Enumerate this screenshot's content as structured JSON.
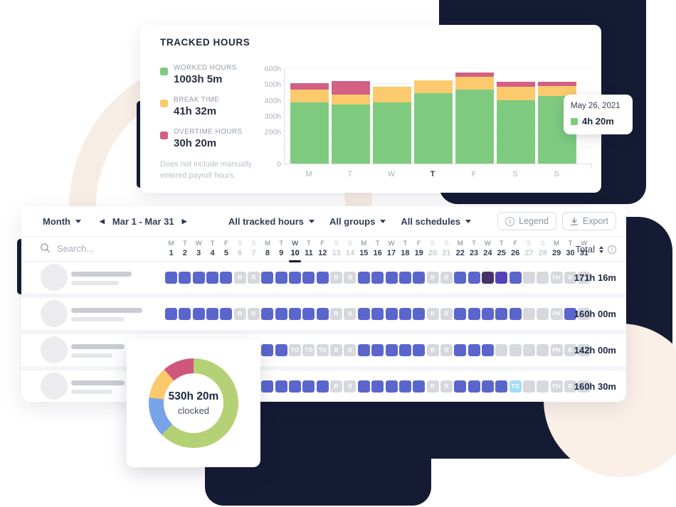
{
  "colors": {
    "worked_green": "#7ecb80",
    "break_yellow": "#fbca6d",
    "overtime_pink": "#d25f84",
    "donut_green": "#b5d176",
    "donut_blue": "#79a3e9",
    "donut_yellow": "#f9c96c",
    "donut_pink": "#cf577c",
    "cell_blue": "#5a66cc",
    "cell_dark_purple": "#463169",
    "cell_violet": "#5343b6",
    "cell_gray": "#d6d8de",
    "cell_lightblue": "#a6dcf7"
  },
  "tracked_card": {
    "title": "TRACKED HOURS",
    "legend": [
      {
        "label": "WORKED HOURS",
        "value": "1003h 5m",
        "color": "worked_green"
      },
      {
        "label": "BREAK TIME",
        "value": "41h 32m",
        "color": "break_yellow"
      },
      {
        "label": "OVERTIME HOURS",
        "value": "30h 20m",
        "color": "overtime_pink"
      }
    ],
    "footnote_line1": "Does not include manually",
    "footnote_line2": "entered payroll hours.",
    "tooltip": {
      "date": "May 26, 2021",
      "value": "4h 20m"
    }
  },
  "chart_data": [
    {
      "type": "bar",
      "stacked": true,
      "title": "Tracked hours by day",
      "categories": [
        "M",
        "T",
        "W",
        "T",
        "F",
        "S",
        "S"
      ],
      "emphasized_category_index": 3,
      "series": [
        {
          "name": "Worked hours",
          "color": "worked_green",
          "values": [
            385,
            370,
            385,
            445,
            465,
            400,
            425
          ]
        },
        {
          "name": "Break time",
          "color": "break_yellow",
          "values": [
            80,
            65,
            100,
            80,
            80,
            85,
            65
          ]
        },
        {
          "name": "Overtime hours",
          "color": "overtime_pink",
          "values": [
            40,
            85,
            0,
            0,
            30,
            30,
            25
          ]
        }
      ],
      "ylim": [
        0,
        600
      ],
      "unit": "h",
      "yticks": [
        {
          "label": "600h",
          "value": 600
        },
        {
          "label": "500h",
          "value": 500
        },
        {
          "label": "400h",
          "value": 400
        },
        {
          "label": "300h",
          "value": 300
        },
        {
          "label": "200h",
          "value": 200
        },
        {
          "label": "0",
          "value": 0
        }
      ],
      "gridlines": [
        100,
        200,
        300,
        400,
        500,
        600
      ],
      "legend_position": "left"
    },
    {
      "type": "pie",
      "donut": true,
      "center_value": "530h 20m",
      "center_label": "clocked",
      "slices": [
        {
          "color": "donut_green",
          "percent": 62.5
        },
        {
          "color": "donut_blue",
          "percent": 14.5
        },
        {
          "color": "donut_yellow",
          "percent": 11.6
        },
        {
          "color": "donut_pink",
          "percent": 11.4
        }
      ]
    }
  ],
  "toolbar": {
    "period_label": "Month",
    "date_range": "Mar 1 - Mar 31",
    "filters": [
      "All tracked hours",
      "All groups",
      "All schedules"
    ],
    "legend_button": "Legend",
    "export_button": "Export"
  },
  "table": {
    "search_placeholder": "Search...",
    "total_label": "Total",
    "days": [
      {
        "n": 1,
        "l": "M"
      },
      {
        "n": 2,
        "l": "T"
      },
      {
        "n": 3,
        "l": "W"
      },
      {
        "n": 4,
        "l": "T"
      },
      {
        "n": 5,
        "l": "F"
      },
      {
        "n": 6,
        "l": "S",
        "w": 1
      },
      {
        "n": 7,
        "l": "S",
        "w": 1
      },
      {
        "n": 8,
        "l": "M"
      },
      {
        "n": 9,
        "l": "T"
      },
      {
        "n": 10,
        "l": "W",
        "sel": 1
      },
      {
        "n": 11,
        "l": "T"
      },
      {
        "n": 12,
        "l": "F"
      },
      {
        "n": 13,
        "l": "S",
        "w": 1
      },
      {
        "n": 14,
        "l": "S",
        "w": 1
      },
      {
        "n": 15,
        "l": "M"
      },
      {
        "n": 16,
        "l": "T"
      },
      {
        "n": 17,
        "l": "W"
      },
      {
        "n": 18,
        "l": "T"
      },
      {
        "n": 19,
        "l": "F"
      },
      {
        "n": 20,
        "l": "S",
        "w": 1
      },
      {
        "n": 21,
        "l": "S",
        "w": 1
      },
      {
        "n": 22,
        "l": "M"
      },
      {
        "n": 23,
        "l": "T"
      },
      {
        "n": 24,
        "l": "W"
      },
      {
        "n": 25,
        "l": "T"
      },
      {
        "n": 26,
        "l": "F"
      },
      {
        "n": 27,
        "l": "S",
        "w": 1
      },
      {
        "n": 28,
        "l": "S",
        "w": 1
      },
      {
        "n": 29,
        "l": "M"
      },
      {
        "n": 30,
        "l": "T"
      },
      {
        "n": 31,
        "l": "W"
      }
    ],
    "cell_types": {
      "W": {
        "color": "cell_blue",
        "label": ""
      },
      "R": {
        "color": "cell_gray",
        "label": "R"
      },
      "P": {
        "color": "cell_gray",
        "label": "PH"
      },
      "T": {
        "color": "cell_gray",
        "label": "TO"
      },
      "A": {
        "color": "cell_lightblue",
        "label": "TO"
      },
      "D": {
        "color": "cell_dark_purple",
        "label": ""
      },
      "V": {
        "color": "cell_violet",
        "label": ""
      },
      "E": {
        "color": "cell_gray",
        "label": ""
      },
      "X": {
        "hidden": true
      }
    },
    "rows": [
      {
        "cells": [
          "W",
          "W",
          "W",
          "W",
          "W",
          "R",
          "R",
          "W",
          "W",
          "W",
          "W",
          "W",
          "R",
          "R",
          "W",
          "W",
          "W",
          "W",
          "W",
          "R",
          "R",
          "W",
          "W",
          "D",
          "V",
          "W",
          "E",
          "E",
          "P",
          "R",
          "R"
        ],
        "total": "171h 16m"
      },
      {
        "cells": [
          "W",
          "W",
          "W",
          "W",
          "W",
          "R",
          "R",
          "W",
          "W",
          "W",
          "W",
          "W",
          "R",
          "R",
          "W",
          "W",
          "W",
          "W",
          "W",
          "R",
          "R",
          "W",
          "W",
          "W",
          "W",
          "W",
          "E",
          "E",
          "P",
          "W",
          "R"
        ],
        "total": "160h 00m"
      },
      {
        "cells": [
          "X",
          "X",
          "X",
          "X",
          "X",
          "X",
          "X",
          "W",
          "W",
          "T",
          "T",
          "T",
          "R",
          "R",
          "W",
          "W",
          "W",
          "W",
          "W",
          "R",
          "R",
          "W",
          "W",
          "W",
          "E",
          "E",
          "E",
          "E",
          "P",
          "R",
          "R"
        ],
        "total": "142h 00m"
      },
      {
        "cells": [
          "X",
          "X",
          "X",
          "X",
          "X",
          "X",
          "X",
          "W",
          "W",
          "W",
          "W",
          "W",
          "R",
          "R",
          "W",
          "W",
          "W",
          "W",
          "W",
          "R",
          "R",
          "W",
          "W",
          "W",
          "W",
          "A",
          "E",
          "E",
          "P",
          "R",
          "R"
        ],
        "total": "160h 30m"
      }
    ]
  },
  "donut_card": {
    "value": "530h 20m",
    "label": "clocked"
  }
}
